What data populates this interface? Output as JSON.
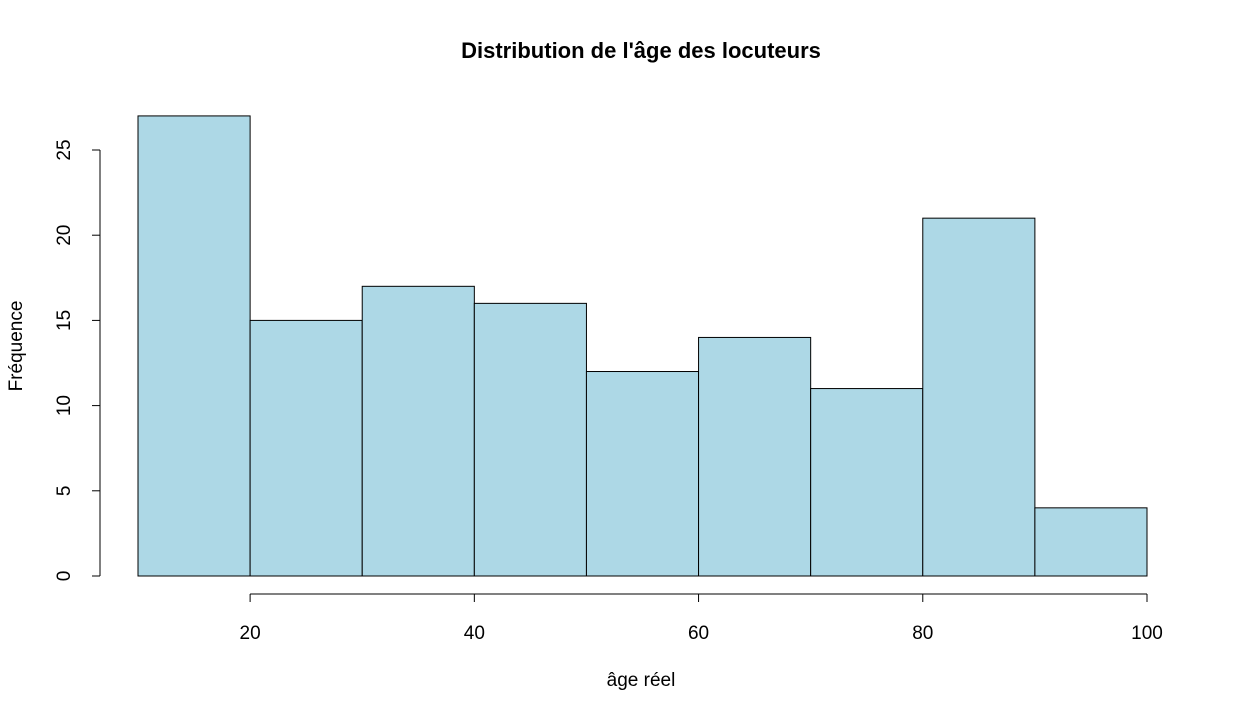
{
  "chart_data": {
    "type": "bar",
    "title": "Distribution de l'âge des locuteurs",
    "xlabel": "âge réel",
    "ylabel": "Fréquence",
    "bins": [
      {
        "start": 10,
        "end": 20,
        "count": 27
      },
      {
        "start": 20,
        "end": 30,
        "count": 15
      },
      {
        "start": 30,
        "end": 40,
        "count": 17
      },
      {
        "start": 40,
        "end": 50,
        "count": 16
      },
      {
        "start": 50,
        "end": 60,
        "count": 12
      },
      {
        "start": 60,
        "end": 70,
        "count": 14
      },
      {
        "start": 70,
        "end": 80,
        "count": 11
      },
      {
        "start": 80,
        "end": 90,
        "count": 21
      },
      {
        "start": 90,
        "end": 100,
        "count": 4
      }
    ],
    "x_ticks": [
      "20",
      "40",
      "60",
      "80",
      "100"
    ],
    "y_ticks": [
      "0",
      "5",
      "10",
      "15",
      "20",
      "25"
    ],
    "xlim": [
      10,
      100
    ],
    "ylim": [
      0,
      25
    ],
    "bar_color": "#ADD8E6",
    "grid": false
  }
}
